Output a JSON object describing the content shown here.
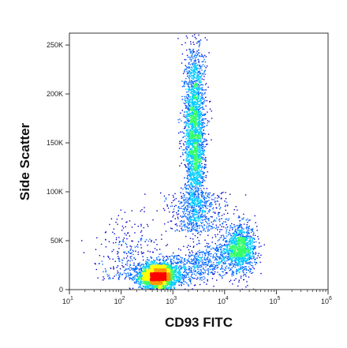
{
  "chart_data": {
    "type": "scatter",
    "subtype": "flow cytometry density dot plot",
    "xlabel": "CD93 FITC",
    "ylabel": "Side Scatter",
    "x_scale": "log",
    "xlim": [
      10,
      1000000
    ],
    "y_scale": "linear",
    "ylim": [
      0,
      262144
    ],
    "x_ticks": [
      {
        "value": 10,
        "base": "10",
        "exp": "1"
      },
      {
        "value": 100,
        "base": "10",
        "exp": "2"
      },
      {
        "value": 1000,
        "base": "10",
        "exp": "3"
      },
      {
        "value": 10000,
        "base": "10",
        "exp": "4"
      },
      {
        "value": 100000,
        "base": "10",
        "exp": "5"
      },
      {
        "value": 1000000,
        "base": "10",
        "exp": "6"
      }
    ],
    "y_ticks": [
      {
        "value": 0,
        "label": "0"
      },
      {
        "value": 50000,
        "label": "50K"
      },
      {
        "value": 100000,
        "label": "100K"
      },
      {
        "value": 150000,
        "label": "150K"
      },
      {
        "value": 200000,
        "label": "200K"
      },
      {
        "value": 250000,
        "label": "250K"
      }
    ],
    "populations": [
      {
        "name": "lymphocytes",
        "x_center": 500,
        "x_spread_log": 0.18,
        "y_center": 14000,
        "y_spread": 7000,
        "density": "high"
      },
      {
        "name": "monocytes",
        "x_center": 20000,
        "x_spread_log": 0.15,
        "y_center": 42000,
        "y_spread": 12000,
        "density": "medium"
      },
      {
        "name": "granulocytes",
        "x_center": 2600,
        "x_spread_log": 0.1,
        "y_center": 160000,
        "y_spread": 45000,
        "density": "high"
      }
    ],
    "color_scale": [
      "#0000cc",
      "#0066ff",
      "#00ccff",
      "#33ff66",
      "#ffff00",
      "#ff9900",
      "#ff0000"
    ],
    "grid": false,
    "legend": "none"
  }
}
